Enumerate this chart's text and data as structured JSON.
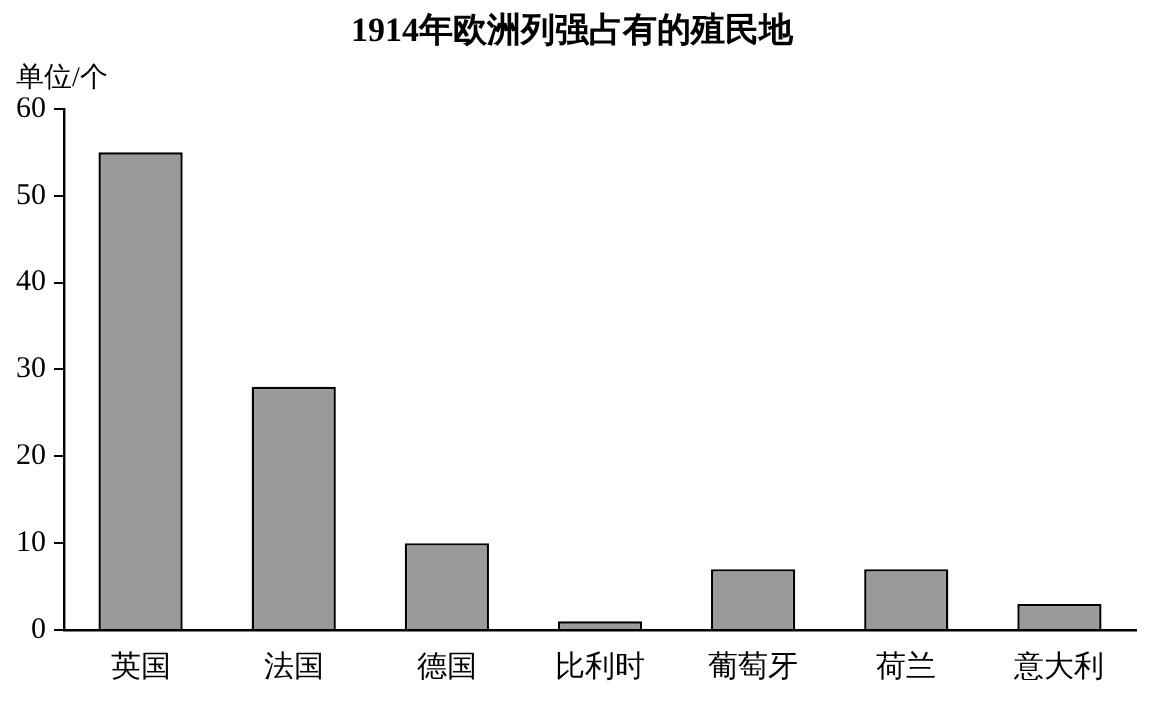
{
  "chart_data": {
    "type": "bar",
    "title": "1914年欧洲列强占有的殖民地",
    "ylabel": "单位/个",
    "categories": [
      "英国",
      "法国",
      "德国",
      "比利时",
      "葡萄牙",
      "荷兰",
      "意大利"
    ],
    "values": [
      55,
      28,
      10,
      1,
      7,
      7,
      3
    ],
    "color": "#9a9a9a",
    "ylim": [
      0,
      60
    ],
    "yticks": [
      0,
      10,
      20,
      30,
      40,
      50,
      60
    ],
    "grid": false,
    "legend": false
  }
}
